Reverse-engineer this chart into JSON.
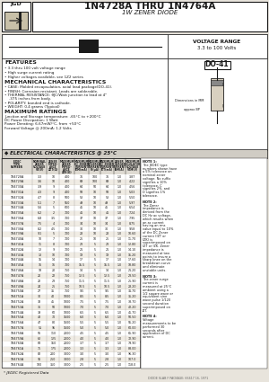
{
  "title_part": "1N4728A THRU 1N4764A",
  "title_sub": "1W ZENER DIODE",
  "voltage_range_line1": "VOLTAGE RANGE",
  "voltage_range_line2": "3.3 to 100 Volts",
  "package": "DO-41",
  "bg_color": "#e8e4dc",
  "white": "#ffffff",
  "black": "#1a1a1a",
  "gray_header": "#d0ccc4",
  "features_title": "FEATURES",
  "features": [
    "• 3.3 thru 100 volt voltage range",
    "• High surge current rating",
    "• Higher voltages available, see 1Z2 series"
  ],
  "mech_title": "MECHANICAL CHARACTERISTICS",
  "mech": [
    "• CASE: Molded encapsulation, axial lead package(DO-41).",
    "• FINISH: Corrosion resistant. Leads are solderable.",
    "• THERMAL RESISTANCE: θJC/Watt junction to lead at 4\"",
    "    .375 inches from body.",
    "• POLARITY: banded end is cathode.",
    "• WEIGHT: 0.4 grams (Typical)"
  ],
  "max_title": "MAXIMUM RATINGS",
  "max_ratings": [
    "Junction and Storage temperature: -65°C to +200°C",
    "DC Power Dissipation: 1 Watt",
    "Power Derating: 6.67mW/°C, from +50°C",
    "Forward Voltage @ 200mA: 1.2 Volts"
  ],
  "elec_title": "◆ ELECTRICAL CHARACTERISTICS @ 25°C",
  "col_headers_line1": [
    "JEDEC",
    "NOMINAL",
    "ZENER",
    "MAXIMUM",
    "MAXIMUM",
    "MAXIMUM",
    "MAXIMUM",
    "ZENER",
    "MAXIMUM"
  ],
  "col_headers_line2": [
    "TYPE",
    "ZENER",
    "IMPED-",
    "ZENER",
    "DC ZENER",
    "REVERSE",
    "DC ZENER",
    "SURGE",
    "REGULATOR"
  ],
  "col_headers_line3": [
    "NUMBER",
    "VOLTAGE",
    "ANCE",
    "IMPED-",
    "CURRENT",
    "CURRENT",
    "CURRENT",
    "CURRENT",
    "VOLTAGE"
  ],
  "col_headers_line4": [
    "",
    "VZ(V)",
    "ZZT(Ω)",
    "ANCE",
    "IZM(mA)",
    "IR(μA)",
    "IZT(mA)",
    "ISM(A)",
    "VZM(V)"
  ],
  "col_headers_line5": [
    "",
    "",
    "",
    "ZZK(Ω)",
    "",
    "",
    "",
    "",
    ""
  ],
  "table_data": [
    [
      "1N4728A",
      "3.3",
      "10",
      "400",
      "76",
      "100",
      "76",
      "1.0",
      "3.87"
    ],
    [
      "1N4729A",
      "3.6",
      "10",
      "400",
      "69",
      "100",
      "69",
      "1.0",
      "4.22"
    ],
    [
      "1N4730A",
      "3.9",
      "9",
      "400",
      "64",
      "50",
      "64",
      "1.0",
      "4.56"
    ],
    [
      "1N4731A",
      "4.3",
      "9",
      "400",
      "58",
      "10",
      "58",
      "1.0",
      "5.03"
    ],
    [
      "1N4732A",
      "4.7",
      "8",
      "500",
      "53",
      "10",
      "53",
      "1.0",
      "5.50"
    ],
    [
      "1N4733A",
      "5.1",
      "7",
      "550",
      "49",
      "10",
      "49",
      "1.0",
      "5.97"
    ],
    [
      "1N4734A",
      "5.6",
      "5",
      "600",
      "45",
      "10",
      "45",
      "1.0",
      "6.54"
    ],
    [
      "1N4735A",
      "6.2",
      "2",
      "700",
      "41",
      "10",
      "41",
      "1.0",
      "7.24"
    ],
    [
      "1N4736A",
      "6.8",
      "3.5",
      "700",
      "37",
      "10",
      "37",
      "1.0",
      "7.95"
    ],
    [
      "1N4737A",
      "7.5",
      "4",
      "700",
      "34",
      "10",
      "34",
      "1.0",
      "8.75"
    ],
    [
      "1N4738A",
      "8.2",
      "4.5",
      "700",
      "30",
      "10",
      "30",
      "1.0",
      "9.58"
    ],
    [
      "1N4739A",
      "9.1",
      "5",
      "700",
      "28",
      "10",
      "28",
      "1.0",
      "10.60"
    ],
    [
      "1N4740A",
      "10",
      "7",
      "700",
      "25",
      "10",
      "25",
      "1.0",
      "11.70"
    ],
    [
      "1N4741A",
      "11",
      "8",
      "700",
      "23",
      "5",
      "23",
      "1.0",
      "12.80"
    ],
    [
      "1N4742A",
      "12",
      "9",
      "700",
      "21",
      "5",
      "21",
      "1.0",
      "14.10"
    ],
    [
      "1N4743A",
      "13",
      "10",
      "700",
      "19",
      "5",
      "19",
      "1.0",
      "15.20"
    ],
    [
      "1N4744A",
      "15",
      "14",
      "700",
      "17",
      "5",
      "17",
      "1.0",
      "17.60"
    ],
    [
      "1N4745A",
      "16",
      "16",
      "700",
      "15.5",
      "5",
      "15.5",
      "1.0",
      "18.80"
    ],
    [
      "1N4746A",
      "18",
      "20",
      "750",
      "14",
      "5",
      "14",
      "1.0",
      "21.20"
    ],
    [
      "1N4747A",
      "20",
      "22",
      "750",
      "12.5",
      "5",
      "12.5",
      "1.0",
      "23.50"
    ],
    [
      "1N4748A",
      "22",
      "23",
      "750",
      "11.5",
      "5",
      "11.5",
      "1.0",
      "25.90"
    ],
    [
      "1N4749A",
      "24",
      "25",
      "750",
      "10.5",
      "5",
      "10.5",
      "1.0",
      "28.20"
    ],
    [
      "1N4750A",
      "27",
      "35",
      "750",
      "9.5",
      "5",
      "9.5",
      "1.0",
      "31.70"
    ],
    [
      "1N4751A",
      "30",
      "40",
      "1000",
      "8.5",
      "5",
      "8.5",
      "1.0",
      "35.20"
    ],
    [
      "1N4752A",
      "33",
      "45",
      "1000",
      "7.5",
      "5",
      "7.5",
      "1.0",
      "38.70"
    ],
    [
      "1N4753A",
      "36",
      "50",
      "1000",
      "7.0",
      "5",
      "7.0",
      "1.0",
      "42.20"
    ],
    [
      "1N4754A",
      "39",
      "60",
      "1000",
      "6.5",
      "5",
      "6.5",
      "1.0",
      "45.70"
    ],
    [
      "1N4755A",
      "43",
      "70",
      "1500",
      "6.0",
      "5",
      "6.0",
      "1.0",
      "50.50"
    ],
    [
      "1N4756A",
      "47",
      "80",
      "1500",
      "5.5",
      "5",
      "5.5",
      "1.0",
      "55.20"
    ],
    [
      "1N4757A",
      "51",
      "95",
      "1500",
      "5.0",
      "5",
      "5.0",
      "1.0",
      "60.00"
    ],
    [
      "1N4758A",
      "56",
      "110",
      "2000",
      "4.5",
      "5",
      "4.5",
      "1.0",
      "65.90"
    ],
    [
      "1N4759A",
      "62",
      "125",
      "2000",
      "4.0",
      "5",
      "4.0",
      "1.0",
      "72.90"
    ],
    [
      "1N4760A",
      "68",
      "150",
      "2000",
      "3.7",
      "5",
      "3.7",
      "1.0",
      "79.90"
    ],
    [
      "1N4761A",
      "75",
      "175",
      "2000",
      "3.3",
      "5",
      "3.3",
      "1.0",
      "88.00"
    ],
    [
      "1N4762A",
      "82",
      "200",
      "3000",
      "3.0",
      "5",
      "3.0",
      "1.0",
      "96.30"
    ],
    [
      "1N4763A",
      "91",
      "250",
      "3000",
      "2.8",
      "5",
      "2.8",
      "1.0",
      "107.0"
    ],
    [
      "1N4764A",
      "100",
      "350",
      "3000",
      "2.5",
      "5",
      "2.5",
      "1.0",
      "118.0"
    ]
  ],
  "note1": "NOTE 1: The JEDEC type numbers shown have a 5% tolerance on nominal zener voltage. No suffix signifies a 10% tolerance, C signifies 2%, and D signifies 1% tolerance.",
  "note2": "NOTE 2: The Zener impedance is derived from the DC Hz ac voltage, which results when an ac current having an rms value equal to 10% of the DC Zener current (IZT or IZK) is superimposed on IZT or IZK. Zener impedance is measured at two points to insure a sharp knee on the breakdown curve and eliminate unstable units.",
  "note3": "NOTE 3: The zener surge current is measured at 25°C ambient using a 1/2 square wave or equivalent sine wave pulse 1/120 second duration superimposed on IZT.",
  "note4": "NOTE 4: Voltage measurements to be performed 30 seconds after application of DC current.",
  "footer": "* JEDEC Registered Data",
  "bottom_text": "DIODE SLAB F PACKAGE: 66617 16, 1971"
}
